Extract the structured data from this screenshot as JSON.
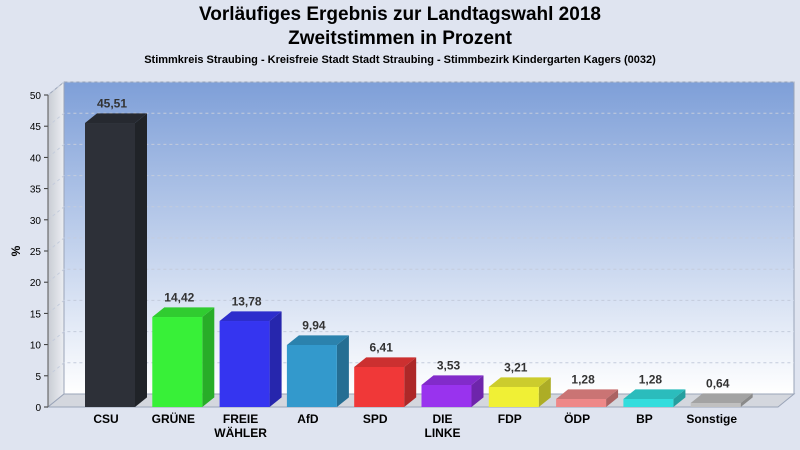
{
  "header": {
    "title": "Vorläufiges Ergebnis zur Landtagswahl 2018",
    "subtitle": "Zweitstimmen in Prozent",
    "district": "Stimmkreis Straubing - Kreisfreie Stadt Stadt Straubing - Stimmbezirk Kindergarten Kagers (0032)"
  },
  "chart_data": {
    "type": "bar",
    "title": "Vorläufiges Ergebnis zur Landtagswahl 2018",
    "subtitle": "Zweitstimmen in Prozent",
    "xlabel": "",
    "ylabel": "%",
    "ylim": [
      0,
      50
    ],
    "yticks": [
      0,
      5,
      10,
      15,
      20,
      25,
      30,
      35,
      40,
      45,
      50
    ],
    "grid": true,
    "legend": "none",
    "categories": [
      "CSU",
      "GRÜNE",
      "FREIE WÄHLER",
      "AfD",
      "SPD",
      "DIE LINKE",
      "FDP",
      "ÖDP",
      "BP",
      "Sonstige"
    ],
    "category_lines": [
      [
        "CSU"
      ],
      [
        "GRÜNE"
      ],
      [
        "FREIE",
        "WÄHLER"
      ],
      [
        "AfD"
      ],
      [
        "SPD"
      ],
      [
        "DIE",
        "LINKE"
      ],
      [
        "FDP"
      ],
      [
        "ÖDP"
      ],
      [
        "BP"
      ],
      [
        "Sonstige"
      ]
    ],
    "values": [
      45.51,
      14.42,
      13.78,
      9.94,
      6.41,
      3.53,
      3.21,
      1.28,
      1.28,
      0.64
    ],
    "value_labels": [
      "45,51",
      "14,42",
      "13,78",
      "9,94",
      "6,41",
      "3,53",
      "3,21",
      "1,28",
      "1,28",
      "0,64"
    ],
    "colors": [
      "#2d3038",
      "#38f038",
      "#3535f0",
      "#3399cc",
      "#f03838",
      "#9933ee",
      "#f0f035",
      "#ee8888",
      "#33dddd",
      "#c0c0c0"
    ]
  }
}
